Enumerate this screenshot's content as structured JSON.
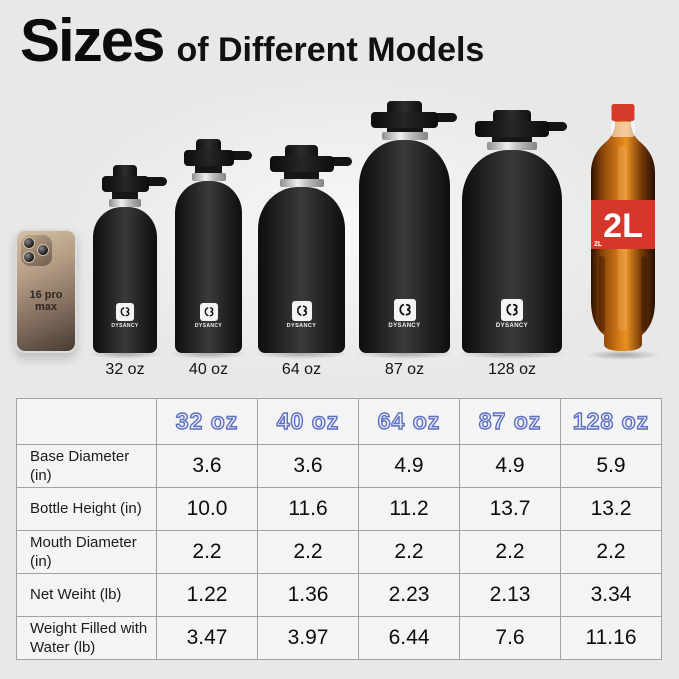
{
  "title": {
    "main": "Sizes",
    "rest": "of Different Models"
  },
  "scene": {
    "phone_label": "16 pro max",
    "brand": "DYSANCY",
    "bottles": [
      {
        "label": "32 oz"
      },
      {
        "label": "40 oz"
      },
      {
        "label": "64 oz"
      },
      {
        "label": "87 oz"
      },
      {
        "label": "128 oz"
      }
    ],
    "cola": {
      "big_label": "2L",
      "small_label": "2L"
    }
  },
  "table": {
    "columns": [
      "32 oz",
      "40 oz",
      "64 oz",
      "87 oz",
      "128 oz"
    ],
    "rows": [
      {
        "label": "Base Diameter (in)",
        "values": [
          "3.6",
          "3.6",
          "4.9",
          "4.9",
          "5.9"
        ]
      },
      {
        "label": "Bottle Height (in)",
        "values": [
          "10.0",
          "11.6",
          "11.2",
          "13.7",
          "13.2"
        ]
      },
      {
        "label": "Mouth Diameter (in)",
        "values": [
          "2.2",
          "2.2",
          "2.2",
          "2.2",
          "2.2"
        ]
      },
      {
        "label": "Net Weiht (lb)",
        "values": [
          "1.22",
          "1.36",
          "2.23",
          "2.13",
          "3.34"
        ]
      },
      {
        "label": "Weight Filled with Water (lb)",
        "values": [
          "3.47",
          "3.97",
          "6.44",
          "7.6",
          "11.16"
        ]
      }
    ]
  },
  "colors": {
    "header_accent": "#5e6fc0",
    "cola_red": "#d6372b",
    "bottle_black": "#1a1a1a"
  }
}
